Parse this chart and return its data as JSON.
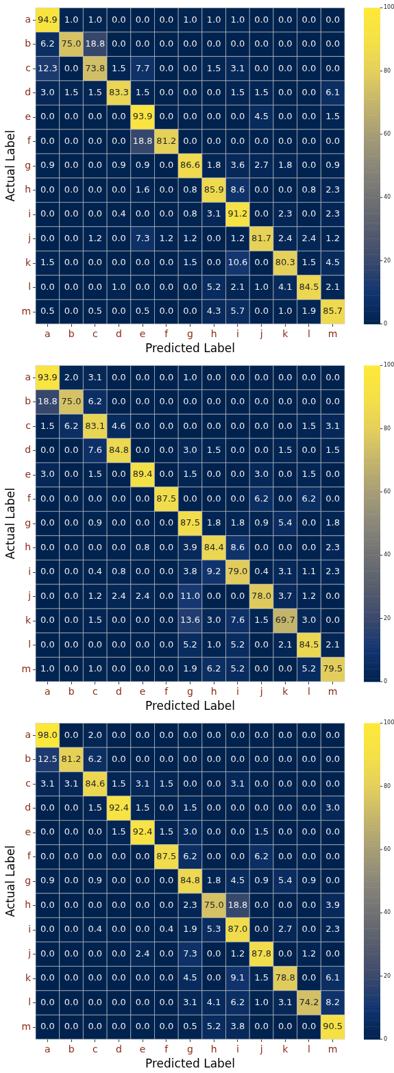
{
  "chart_data": [
    {
      "type": "heatmap",
      "xlabel": "Predicted Label",
      "ylabel": "Actual Label",
      "categories": [
        "a",
        "b",
        "c",
        "d",
        "e",
        "f",
        "g",
        "h",
        "i",
        "j",
        "k",
        "l",
        "m"
      ],
      "y_categories": [
        "a",
        "b",
        "c",
        "d",
        "e",
        "f",
        "g",
        "h",
        "i",
        "j",
        "k",
        "l",
        "m"
      ],
      "clim": [
        0,
        100
      ],
      "cticks": [
        0,
        20,
        40,
        60,
        80,
        100
      ],
      "cells": [
        [
          94.9,
          1.0,
          1.0,
          0.0,
          0.0,
          0.0,
          1.0,
          1.0,
          1.0,
          0.0,
          0.0,
          0.0,
          0.0
        ],
        [
          6.2,
          75.0,
          18.8,
          0.0,
          0.0,
          0.0,
          0.0,
          0.0,
          0.0,
          0.0,
          0.0,
          0.0,
          0.0
        ],
        [
          12.3,
          0.0,
          73.8,
          1.5,
          7.7,
          0.0,
          0.0,
          1.5,
          3.1,
          0.0,
          0.0,
          0.0,
          0.0
        ],
        [
          3.0,
          1.5,
          1.5,
          83.3,
          1.5,
          0.0,
          0.0,
          0.0,
          1.5,
          1.5,
          0.0,
          0.0,
          6.1
        ],
        [
          0.0,
          0.0,
          0.0,
          0.0,
          93.9,
          0.0,
          0.0,
          0.0,
          0.0,
          4.5,
          0.0,
          0.0,
          1.5
        ],
        [
          0.0,
          0.0,
          0.0,
          0.0,
          18.8,
          81.2,
          0.0,
          0.0,
          0.0,
          0.0,
          0.0,
          0.0,
          0.0
        ],
        [
          0.9,
          0.0,
          0.0,
          0.9,
          0.9,
          0.0,
          86.6,
          1.8,
          3.6,
          2.7,
          1.8,
          0.0,
          0.9
        ],
        [
          0.0,
          0.0,
          0.0,
          0.0,
          1.6,
          0.0,
          0.8,
          85.9,
          8.6,
          0.0,
          0.0,
          0.8,
          2.3
        ],
        [
          0.0,
          0.0,
          0.0,
          0.4,
          0.0,
          0.0,
          0.8,
          3.1,
          91.2,
          0.0,
          2.3,
          0.0,
          2.3
        ],
        [
          0.0,
          0.0,
          1.2,
          0.0,
          7.3,
          1.2,
          1.2,
          0.0,
          1.2,
          81.7,
          2.4,
          2.4,
          1.2
        ],
        [
          1.5,
          0.0,
          0.0,
          0.0,
          0.0,
          0.0,
          1.5,
          0.0,
          10.6,
          0.0,
          80.3,
          1.5,
          4.5
        ],
        [
          0.0,
          0.0,
          0.0,
          1.0,
          0.0,
          0.0,
          0.0,
          5.2,
          2.1,
          1.0,
          4.1,
          84.5,
          2.1
        ],
        [
          0.5,
          0.0,
          0.5,
          0.0,
          0.5,
          0.0,
          0.0,
          4.3,
          5.7,
          0.0,
          1.0,
          1.9,
          85.7
        ]
      ],
      "cell_labels": [
        [
          "94.9",
          "1.0",
          "1.0",
          "0.0",
          "0.0",
          "0.0",
          "1.0",
          "1.0",
          "1.0",
          "0.0",
          "0.0",
          "0.0",
          "0.0"
        ],
        [
          "6.2",
          "75.0",
          "18.8",
          "0.0",
          "0.0",
          "0.0",
          "0.0",
          "0.0",
          "0.0",
          "0.0",
          "0.0",
          "0.0",
          "0.0"
        ],
        [
          "12.3",
          "0.0",
          "73.8",
          "1.5",
          "7.7",
          "0.0",
          "0.0",
          "1.5",
          "3.1",
          "0.0",
          "0.0",
          "0.0",
          "0.0"
        ],
        [
          "3.0",
          "1.5",
          "1.5",
          "83.3",
          "1.5",
          "0.0",
          "0.0",
          "0.0",
          "1.5",
          "1.5",
          "0.0",
          "0.0",
          "6.1"
        ],
        [
          "0.0",
          "0.0",
          "0.0",
          "0.0",
          "93.9",
          "0.0",
          "0.0",
          "0.0",
          "0.0",
          "4.5",
          "0.0",
          "0.0",
          "1.5"
        ],
        [
          "0.0",
          "0.0",
          "0.0",
          "0.0",
          "18.8",
          "81.2",
          "0.0",
          "0.0",
          "0.0",
          "0.0",
          "0.0",
          "0.0",
          "0.0"
        ],
        [
          "0.9",
          "0.0",
          "0.0",
          "0.9",
          "0.9",
          "0.0",
          "86.6",
          "1.8",
          "3.6",
          "2.7",
          "1.8",
          "0.0",
          "0.9"
        ],
        [
          "0.0",
          "0.0",
          "0.0",
          "0.0",
          "1.6",
          "0.0",
          "0.8",
          "85.9",
          "8.6",
          "0.0",
          "0.0",
          "0.8",
          "2.3"
        ],
        [
          "0.0",
          "0.0",
          "0.0",
          "0.4",
          "0.0",
          "0.0",
          "0.8",
          "3.1",
          "91.2",
          "0.0",
          "2.3",
          "0.0",
          "2.3"
        ],
        [
          "0.0",
          "0.0",
          "1.2",
          "0.0",
          "7.3",
          "1.2",
          "1.2",
          "0.0",
          "1.2",
          "81.7",
          "2.4",
          "2.4",
          "1.2"
        ],
        [
          "1.5",
          "0.0",
          "0.0",
          "0.0",
          "0.0",
          "0.0",
          "1.5",
          "0.0",
          "10.6",
          "0.0",
          "80.3",
          "1.5",
          "4.5"
        ],
        [
          "0.0",
          "0.0",
          "0.0",
          "1.0",
          "0.0",
          "0.0",
          "0.0",
          "5.2",
          "2.1",
          "1.0",
          "4.1",
          "84.5",
          "2.1"
        ],
        [
          "0.5",
          "0.0",
          "0.5",
          "0.0",
          "0.5",
          "0.0",
          "0.0",
          "4.3",
          "5.7",
          "0.0",
          "1.0",
          "1.9",
          "85.7"
        ]
      ]
    },
    {
      "type": "heatmap",
      "xlabel": "Predicted Label",
      "ylabel": "Actual Label",
      "categories": [
        "a",
        "b",
        "c",
        "d",
        "e",
        "f",
        "g",
        "h",
        "i",
        "j",
        "k",
        "l",
        "m"
      ],
      "y_categories": [
        "a",
        "b",
        "c",
        "d",
        "e",
        "f",
        "g",
        "h",
        "i",
        "j",
        "k",
        "l",
        "m"
      ],
      "clim": [
        0,
        100
      ],
      "cticks": [
        0,
        20,
        40,
        60,
        80,
        100
      ],
      "cells": [
        [
          93.9,
          2.0,
          3.1,
          0.0,
          0.0,
          0.0,
          1.0,
          0.0,
          0.0,
          0.0,
          0.0,
          0.0,
          0.0
        ],
        [
          18.8,
          75.0,
          6.2,
          0.0,
          0.0,
          0.0,
          0.0,
          0.0,
          0.0,
          0.0,
          0.0,
          0.0,
          0.0
        ],
        [
          1.5,
          6.2,
          83.1,
          4.6,
          0.0,
          0.0,
          0.0,
          0.0,
          0.0,
          0.0,
          0.0,
          1.5,
          3.1
        ],
        [
          0.0,
          0.0,
          7.6,
          84.8,
          0.0,
          0.0,
          3.0,
          1.5,
          0.0,
          0.0,
          1.5,
          0.0,
          1.5
        ],
        [
          3.0,
          0.0,
          1.5,
          0.0,
          89.4,
          0.0,
          1.5,
          0.0,
          0.0,
          3.0,
          0.0,
          1.5,
          0.0
        ],
        [
          0.0,
          0.0,
          0.0,
          0.0,
          0.0,
          87.5,
          0.0,
          0.0,
          0.0,
          6.2,
          0.0,
          6.2,
          0.0
        ],
        [
          0.0,
          0.0,
          0.9,
          0.0,
          0.0,
          0.0,
          87.5,
          1.8,
          1.8,
          0.9,
          5.4,
          0.0,
          1.8
        ],
        [
          0.0,
          0.0,
          0.0,
          0.0,
          0.8,
          0.0,
          3.9,
          84.4,
          8.6,
          0.0,
          0.0,
          0.0,
          2.3
        ],
        [
          0.0,
          0.0,
          0.4,
          0.8,
          0.0,
          0.0,
          3.8,
          9.2,
          79.0,
          0.4,
          3.1,
          1.1,
          2.3
        ],
        [
          0.0,
          0.0,
          1.2,
          2.4,
          2.4,
          0.0,
          11.0,
          0.0,
          0.0,
          78.0,
          3.7,
          1.2,
          0.0
        ],
        [
          0.0,
          0.0,
          1.5,
          0.0,
          0.0,
          0.0,
          13.6,
          3.0,
          7.6,
          1.5,
          69.7,
          3.0,
          0.0
        ],
        [
          0.0,
          0.0,
          0.0,
          0.0,
          0.0,
          0.0,
          5.2,
          1.0,
          5.2,
          0.0,
          2.1,
          84.5,
          2.1
        ],
        [
          1.0,
          0.0,
          1.0,
          0.0,
          0.0,
          0.0,
          1.9,
          6.2,
          5.2,
          0.0,
          0.0,
          5.2,
          79.5
        ]
      ],
      "cell_labels": [
        [
          "93.9",
          "2.0",
          "3.1",
          "0.0",
          "0.0",
          "0.0",
          "1.0",
          "0.0",
          "0.0",
          "0.0",
          "0.0",
          "0.0",
          "0.0"
        ],
        [
          "18.8",
          "75.0",
          "6.2",
          "0.0",
          "0.0",
          "0.0",
          "0.0",
          "0.0",
          "0.0",
          "0.0",
          "0.0",
          "0.0",
          "0.0"
        ],
        [
          "1.5",
          "6.2",
          "83.1",
          "4.6",
          "0.0",
          "0.0",
          "0.0",
          "0.0",
          "0.0",
          "0.0",
          "0.0",
          "1.5",
          "3.1"
        ],
        [
          "0.0",
          "0.0",
          "7.6",
          "84.8",
          "0.0",
          "0.0",
          "3.0",
          "1.5",
          "0.0",
          "0.0",
          "1.5",
          "0.0",
          "1.5"
        ],
        [
          "3.0",
          "0.0",
          "1.5",
          "0.0",
          "89.4",
          "0.0",
          "1.5",
          "0.0",
          "0.0",
          "3.0",
          "0.0",
          "1.5",
          "0.0"
        ],
        [
          "0.0",
          "0.0",
          "0.0",
          "0.0",
          "0.0",
          "87.5",
          "0.0",
          "0.0",
          "0.0",
          "6.2",
          "0.0",
          "6.2",
          "0.0"
        ],
        [
          "0.0",
          "0.0",
          "0.9",
          "0.0",
          "0.0",
          "0.0",
          "87.5",
          "1.8",
          "1.8",
          "0.9",
          "5.4",
          "0.0",
          "1.8"
        ],
        [
          "0.0",
          "0.0",
          "0.0",
          "0.0",
          "0.8",
          "0.0",
          "3.9",
          "84.4",
          "8.6",
          "0.0",
          "0.0",
          "0.0",
          "2.3"
        ],
        [
          "0.0",
          "0.0",
          "0.4",
          "0.8",
          "0.0",
          "0.0",
          "3.8",
          "9.2",
          "79.0",
          "0.4",
          "3.1",
          "1.1",
          "2.3"
        ],
        [
          "0.0",
          "0.0",
          "1.2",
          "2.4",
          "2.4",
          "0.0",
          "11.0",
          "0.0",
          "0.0",
          "78.0",
          "3.7",
          "1.2",
          "0.0"
        ],
        [
          "0.0",
          "0.0",
          "1.5",
          "0.0",
          "0.0",
          "0.0",
          "13.6",
          "3.0",
          "7.6",
          "1.5",
          "69.7",
          "3.0",
          "0.0"
        ],
        [
          "0.0",
          "0.0",
          "0.0",
          "0.0",
          "0.0",
          "0.0",
          "5.2",
          "1.0",
          "5.2",
          "0.0",
          "2.1",
          "84.5",
          "2.1"
        ],
        [
          "1.0",
          "0.0",
          "1.0",
          "0.0",
          "0.0",
          "0.0",
          "1.9",
          "6.2",
          "5.2",
          "0.0",
          "0.0",
          "5.2",
          "79.5"
        ]
      ]
    },
    {
      "type": "heatmap",
      "xlabel": "Predicted Label",
      "ylabel": "Actual Label",
      "categories": [
        "a",
        "b",
        "c",
        "d",
        "e",
        "f",
        "g",
        "h",
        "i",
        "j",
        "k",
        "l",
        "m"
      ],
      "y_categories": [
        "a",
        "b",
        "c",
        "d",
        "e",
        "f",
        "g",
        "h",
        "i",
        "j",
        "k",
        "l",
        "m"
      ],
      "clim": [
        0,
        100
      ],
      "cticks": [
        0,
        20,
        40,
        60,
        80,
        100
      ],
      "cells": [
        [
          98.0,
          0.0,
          2.0,
          0.0,
          0.0,
          0.0,
          0.0,
          0.0,
          0.0,
          0.0,
          0.0,
          0.0,
          0.0
        ],
        [
          12.5,
          81.2,
          6.2,
          0.0,
          0.0,
          0.0,
          0.0,
          0.0,
          0.0,
          0.0,
          0.0,
          0.0,
          0.0
        ],
        [
          3.1,
          3.1,
          84.6,
          1.5,
          3.1,
          1.5,
          0.0,
          0.0,
          3.1,
          0.0,
          0.0,
          0.0,
          0.0
        ],
        [
          0.0,
          0.0,
          1.5,
          92.4,
          1.5,
          0.0,
          1.5,
          0.0,
          0.0,
          0.0,
          0.0,
          0.0,
          3.0
        ],
        [
          0.0,
          0.0,
          0.0,
          1.5,
          92.4,
          1.5,
          3.0,
          0.0,
          0.0,
          1.5,
          0.0,
          0.0,
          0.0
        ],
        [
          0.0,
          0.0,
          0.0,
          0.0,
          0.0,
          87.5,
          6.2,
          0.0,
          0.0,
          6.2,
          0.0,
          0.0,
          0.0
        ],
        [
          0.9,
          0.0,
          0.9,
          0.0,
          0.0,
          0.0,
          84.8,
          1.8,
          4.5,
          0.9,
          5.4,
          0.9,
          0.0
        ],
        [
          0.0,
          0.0,
          0.0,
          0.0,
          0.0,
          0.0,
          2.3,
          75.0,
          18.8,
          0.0,
          0.0,
          0.0,
          3.9
        ],
        [
          0.0,
          0.0,
          0.4,
          0.0,
          0.0,
          0.4,
          1.9,
          5.3,
          87.0,
          0.0,
          2.7,
          0.0,
          2.3
        ],
        [
          0.0,
          0.0,
          0.0,
          0.0,
          2.4,
          0.0,
          7.3,
          0.0,
          1.2,
          87.8,
          0.0,
          1.2,
          0.0
        ],
        [
          0.0,
          0.0,
          0.0,
          0.0,
          0.0,
          0.0,
          4.5,
          0.0,
          9.1,
          1.5,
          78.8,
          0.0,
          6.1
        ],
        [
          0.0,
          0.0,
          0.0,
          0.0,
          0.0,
          0.0,
          3.1,
          4.1,
          6.2,
          1.0,
          3.1,
          74.2,
          8.2
        ],
        [
          0.0,
          0.0,
          0.0,
          0.0,
          0.0,
          0.0,
          0.5,
          5.2,
          3.8,
          0.0,
          0.0,
          0.0,
          90.5
        ]
      ],
      "cell_labels": [
        [
          "98.0",
          "0.0",
          "2.0",
          "0.0",
          "0.0",
          "0.0",
          "0.0",
          "0.0",
          "0.0",
          "0.0",
          "0.0",
          "0.0",
          "0.0"
        ],
        [
          "12.5",
          "81.2",
          "6.2",
          "0.0",
          "0.0",
          "0.0",
          "0.0",
          "0.0",
          "0.0",
          "0.0",
          "0.0",
          "0.0",
          "0.0"
        ],
        [
          "3.1",
          "3.1",
          "84.6",
          "1.5",
          "3.1",
          "1.5",
          "0.0",
          "0.0",
          "3.1",
          "0.0",
          "0.0",
          "0.0",
          "0.0"
        ],
        [
          "0.0",
          "0.0",
          "1.5",
          "92.4",
          "1.5",
          "0.0",
          "1.5",
          "0.0",
          "0.0",
          "0.0",
          "0.0",
          "0.0",
          "3.0"
        ],
        [
          "0.0",
          "0.0",
          "0.0",
          "1.5",
          "92.4",
          "1.5",
          "3.0",
          "0.0",
          "0.0",
          "1.5",
          "0.0",
          "0.0",
          "0.0"
        ],
        [
          "0.0",
          "0.0",
          "0.0",
          "0.0",
          "0.0",
          "87.5",
          "6.2",
          "0.0",
          "0.0",
          "6.2",
          "0.0",
          "0.0",
          "0.0"
        ],
        [
          "0.9",
          "0.0",
          "0.9",
          "0.0",
          "0.0",
          "0.0",
          "84.8",
          "1.8",
          "4.5",
          "0.9",
          "5.4",
          "0.9",
          "0.0"
        ],
        [
          "0.0",
          "0.0",
          "0.0",
          "0.0",
          "0.0",
          "0.0",
          "2.3",
          "75.0",
          "18.8",
          "0.0",
          "0.0",
          "0.0",
          "3.9"
        ],
        [
          "0.0",
          "0.0",
          "0.4",
          "0.0",
          "0.0",
          "0.4",
          "1.9",
          "5.3",
          "87.0",
          "0.0",
          "2.7",
          "0.0",
          "2.3"
        ],
        [
          "0.0",
          "0.0",
          "0.0",
          "0.0",
          "2.4",
          "0.0",
          "7.3",
          "0.0",
          "1.2",
          "87.8",
          "0.0",
          "1.2",
          "0.0"
        ],
        [
          "0.0",
          "0.0",
          "0.0",
          "0.0",
          "0.0",
          "0.0",
          "4.5",
          "0.0",
          "9.1",
          "1.5",
          "78.8",
          "0.0",
          "6.1"
        ],
        [
          "0.0",
          "0.0",
          "0.0",
          "0.0",
          "0.0",
          "0.0",
          "3.1",
          "4.1",
          "6.2",
          "1.0",
          "3.1",
          "74.2",
          "8.2"
        ],
        [
          "0.0",
          "0.0",
          "0.0",
          "0.0",
          "0.0",
          "0.0",
          "0.5",
          "5.2",
          "3.8",
          "0.0",
          "0.0",
          "0.0",
          "90.5"
        ]
      ]
    }
  ]
}
